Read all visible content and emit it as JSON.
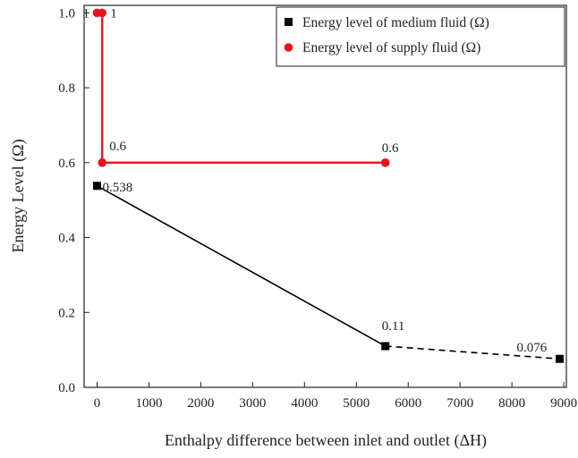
{
  "chart_data": {
    "type": "line",
    "xlabel": "Enthalpy difference between inlet and outlet (ΔH)",
    "ylabel": "Energy Level (Ω)",
    "xlim": [
      -250,
      9050
    ],
    "ylim": [
      0,
      1.02
    ],
    "xticks": [
      0,
      1000,
      2000,
      3000,
      4000,
      5000,
      6000,
      7000,
      8000,
      9000
    ],
    "yticks": [
      0.0,
      0.2,
      0.4,
      0.6,
      0.8,
      1.0
    ],
    "xtick_labels": [
      "0",
      "1000",
      "2000",
      "3000",
      "4000",
      "5000",
      "6000",
      "7000",
      "8000",
      "9000"
    ],
    "ytick_labels": [
      "0.0",
      "0.2",
      "0.4",
      "0.6",
      "0.8",
      "1.0"
    ],
    "grid": false,
    "legend_position": "top-right",
    "series": [
      {
        "name": "Energy level of medium fluid (Ω)",
        "color": "#000000",
        "marker": "square",
        "points": [
          {
            "x": 0,
            "y": 0.538,
            "label": "0.538"
          },
          {
            "x": 5560,
            "y": 0.11,
            "label": "0.11"
          },
          {
            "x": 8920,
            "y": 0.076,
            "label": "0.076"
          }
        ],
        "segment_styles": [
          "solid",
          "dashed"
        ]
      },
      {
        "name": "Energy level of supply fluid (Ω)",
        "color": "#e8141b",
        "marker": "circle",
        "points": [
          {
            "x": 0,
            "y": 1.0,
            "label": "1"
          },
          {
            "x": 100,
            "y": 1.0,
            "label": "1"
          },
          {
            "x": 100,
            "y": 0.6,
            "label": "0.6"
          },
          {
            "x": 5560,
            "y": 0.6,
            "label": "0.6"
          }
        ],
        "segment_styles": [
          "solid",
          "solid",
          "solid"
        ]
      }
    ]
  }
}
